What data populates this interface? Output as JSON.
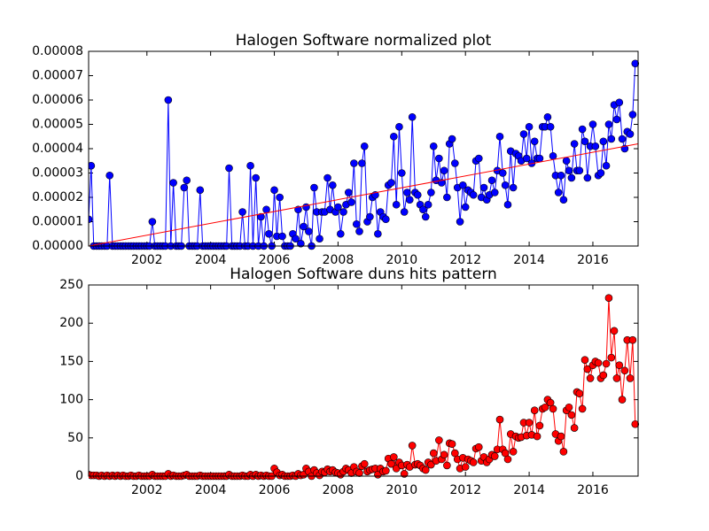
{
  "chart_data": [
    {
      "type": "line",
      "title": "Halogen Software normalized plot",
      "x": [
        2000.17,
        2000.25,
        2000.33,
        2000.42,
        2000.5,
        2000.58,
        2000.67,
        2000.75,
        2000.83,
        2000.92,
        2001,
        2001.08,
        2001.17,
        2001.25,
        2001.33,
        2001.42,
        2001.5,
        2001.58,
        2001.67,
        2001.75,
        2001.83,
        2001.92,
        2002,
        2002.08,
        2002.17,
        2002.25,
        2002.33,
        2002.42,
        2002.5,
        2002.58,
        2002.67,
        2002.75,
        2002.83,
        2002.92,
        2003,
        2003.08,
        2003.17,
        2003.25,
        2003.33,
        2003.42,
        2003.5,
        2003.58,
        2003.67,
        2003.75,
        2003.83,
        2003.92,
        2004,
        2004.08,
        2004.17,
        2004.25,
        2004.33,
        2004.42,
        2004.5,
        2004.58,
        2004.67,
        2004.75,
        2004.83,
        2004.92,
        2005,
        2005.08,
        2005.17,
        2005.25,
        2005.33,
        2005.42,
        2005.5,
        2005.58,
        2005.67,
        2005.75,
        2005.83,
        2005.92,
        2006,
        2006.08,
        2006.17,
        2006.25,
        2006.33,
        2006.42,
        2006.5,
        2006.58,
        2006.67,
        2006.75,
        2006.83,
        2006.92,
        2007,
        2007.08,
        2007.17,
        2007.25,
        2007.33,
        2007.42,
        2007.5,
        2007.58,
        2007.67,
        2007.75,
        2007.83,
        2007.92,
        2008,
        2008.08,
        2008.17,
        2008.25,
        2008.33,
        2008.42,
        2008.5,
        2008.58,
        2008.67,
        2008.75,
        2008.83,
        2008.92,
        2009,
        2009.08,
        2009.17,
        2009.25,
        2009.33,
        2009.42,
        2009.5,
        2009.58,
        2009.67,
        2009.75,
        2009.83,
        2009.92,
        2010,
        2010.08,
        2010.17,
        2010.25,
        2010.33,
        2010.42,
        2010.5,
        2010.58,
        2010.67,
        2010.75,
        2010.83,
        2010.92,
        2011,
        2011.08,
        2011.17,
        2011.25,
        2011.33,
        2011.42,
        2011.5,
        2011.58,
        2011.67,
        2011.75,
        2011.83,
        2011.92,
        2012,
        2012.08,
        2012.17,
        2012.25,
        2012.33,
        2012.42,
        2012.5,
        2012.58,
        2012.67,
        2012.75,
        2012.83,
        2012.92,
        2013,
        2013.08,
        2013.17,
        2013.25,
        2013.33,
        2013.42,
        2013.5,
        2013.58,
        2013.67,
        2013.75,
        2013.83,
        2013.92,
        2014,
        2014.08,
        2014.17,
        2014.25,
        2014.33,
        2014.42,
        2014.5,
        2014.58,
        2014.67,
        2014.75,
        2014.83,
        2014.92,
        2015,
        2015.08,
        2015.17,
        2015.25,
        2015.33,
        2015.42,
        2015.5,
        2015.58,
        2015.67,
        2015.75,
        2015.83,
        2015.92,
        2016,
        2016.08,
        2016.17,
        2016.25,
        2016.33,
        2016.42,
        2016.5,
        2016.58,
        2016.67,
        2016.75,
        2016.83,
        2016.92,
        2017,
        2017.08,
        2017.17,
        2017.25,
        2017.33
      ],
      "series": [
        {
          "color": "#0000ff",
          "values": [
            1.1e-05,
            3.3e-05,
            0,
            0,
            0,
            0,
            0,
            0,
            2.9e-05,
            0,
            0,
            0,
            0,
            0,
            0,
            0,
            0,
            0,
            0,
            0,
            0,
            0,
            0,
            0,
            1e-05,
            0,
            0,
            0,
            0,
            0,
            6e-05,
            0,
            2.6e-05,
            0,
            0,
            0,
            2.4e-05,
            2.7e-05,
            0,
            0,
            0,
            0,
            2.3e-05,
            0,
            0,
            0,
            0,
            0,
            0,
            0,
            0,
            0,
            0,
            3.2e-05,
            0,
            0,
            0,
            0,
            1.4e-05,
            0,
            0,
            3.3e-05,
            0,
            2.8e-05,
            0,
            1.2e-05,
            0,
            1.5e-05,
            5e-06,
            0,
            2.3e-05,
            4e-06,
            2e-05,
            4e-06,
            0,
            0,
            0,
            5e-06,
            3e-06,
            1.5e-05,
            1e-06,
            8e-06,
            1.6e-05,
            6e-06,
            0,
            2.4e-05,
            1.4e-05,
            3e-06,
            1.4e-05,
            1.4e-05,
            2.8e-05,
            1.5e-05,
            2.5e-05,
            1.4e-05,
            1.6e-05,
            5e-06,
            1.4e-05,
            1.7e-05,
            2.2e-05,
            1.8e-05,
            3.4e-05,
            9e-06,
            6e-06,
            3.4e-05,
            4.1e-05,
            1e-05,
            1.2e-05,
            2e-05,
            2.1e-05,
            5e-06,
            1.4e-05,
            1.2e-05,
            1.1e-05,
            2.5e-05,
            2.6e-05,
            4.5e-05,
            1.7e-05,
            4.9e-05,
            3e-05,
            1.4e-05,
            2.2e-05,
            1.9e-05,
            5.3e-05,
            2.2e-05,
            2.1e-05,
            1.7e-05,
            1.5e-05,
            1.2e-05,
            1.7e-05,
            2.2e-05,
            4.1e-05,
            2.7e-05,
            3.6e-05,
            2.6e-05,
            3.1e-05,
            2e-05,
            4.2e-05,
            4.4e-05,
            3.4e-05,
            2.4e-05,
            1e-05,
            2.5e-05,
            1.6e-05,
            2.3e-05,
            2.2e-05,
            2.1e-05,
            3.5e-05,
            3.6e-05,
            2e-05,
            2.4e-05,
            1.9e-05,
            2.1e-05,
            2.7e-05,
            2.2e-05,
            3.1e-05,
            4.5e-05,
            3e-05,
            2.5e-05,
            1.7e-05,
            3.9e-05,
            2.4e-05,
            3.8e-05,
            3.7e-05,
            3.5e-05,
            4.6e-05,
            3.6e-05,
            4.9e-05,
            3.4e-05,
            4.3e-05,
            3.6e-05,
            3.6e-05,
            4.9e-05,
            4.9e-05,
            5.3e-05,
            4.9e-05,
            3.7e-05,
            2.9e-05,
            2.2e-05,
            2.9e-05,
            1.9e-05,
            3.5e-05,
            3.1e-05,
            2.8e-05,
            4.2e-05,
            3.1e-05,
            3.1e-05,
            4.8e-05,
            4.3e-05,
            2.8e-05,
            4.1e-05,
            5e-05,
            4.1e-05,
            2.9e-05,
            3e-05,
            4.3e-05,
            3.3e-05,
            5e-05,
            4.4e-05,
            5.8e-05,
            5.2e-05,
            5.9e-05,
            4.4e-05,
            4e-05,
            4.7e-05,
            4.6e-05,
            5.4e-05,
            7.5e-05
          ]
        }
      ],
      "trend": {
        "color": "#ff0000",
        "x": [
          2000.17,
          2017.42
        ],
        "values": [
          0,
          4.2e-05
        ]
      },
      "xlim": [
        2000.17,
        2017.42
      ],
      "ylim": [
        0,
        8e-05
      ],
      "xticks": [
        2002,
        2004,
        2006,
        2008,
        2010,
        2012,
        2014,
        2016
      ],
      "yticks": [
        {
          "value": 0,
          "label": "0.00000"
        },
        {
          "value": 1e-05,
          "label": "0.00001"
        },
        {
          "value": 2e-05,
          "label": "0.00002"
        },
        {
          "value": 3e-05,
          "label": "0.00003"
        },
        {
          "value": 4e-05,
          "label": "0.00004"
        },
        {
          "value": 5e-05,
          "label": "0.00005"
        },
        {
          "value": 6e-05,
          "label": "0.00006"
        },
        {
          "value": 7e-05,
          "label": "0.00007"
        },
        {
          "value": 8e-05,
          "label": "0.00008"
        }
      ]
    },
    {
      "type": "line",
      "title": "Halogen Software duns hits pattern",
      "x": [
        2000.17,
        2000.25,
        2000.33,
        2000.42,
        2000.5,
        2000.58,
        2000.67,
        2000.75,
        2000.83,
        2000.92,
        2001,
        2001.08,
        2001.17,
        2001.25,
        2001.33,
        2001.42,
        2001.5,
        2001.58,
        2001.67,
        2001.75,
        2001.83,
        2001.92,
        2002,
        2002.08,
        2002.17,
        2002.25,
        2002.33,
        2002.42,
        2002.5,
        2002.58,
        2002.67,
        2002.75,
        2002.83,
        2002.92,
        2003,
        2003.08,
        2003.17,
        2003.25,
        2003.33,
        2003.42,
        2003.5,
        2003.58,
        2003.67,
        2003.75,
        2003.83,
        2003.92,
        2004,
        2004.08,
        2004.17,
        2004.25,
        2004.33,
        2004.42,
        2004.5,
        2004.58,
        2004.67,
        2004.75,
        2004.83,
        2004.92,
        2005,
        2005.08,
        2005.17,
        2005.25,
        2005.33,
        2005.42,
        2005.5,
        2005.58,
        2005.67,
        2005.75,
        2005.83,
        2005.92,
        2006,
        2006.08,
        2006.17,
        2006.25,
        2006.33,
        2006.42,
        2006.5,
        2006.58,
        2006.67,
        2006.75,
        2006.83,
        2006.92,
        2007,
        2007.08,
        2007.17,
        2007.25,
        2007.33,
        2007.42,
        2007.5,
        2007.58,
        2007.67,
        2007.75,
        2007.83,
        2007.92,
        2008,
        2008.08,
        2008.17,
        2008.25,
        2008.33,
        2008.42,
        2008.5,
        2008.58,
        2008.67,
        2008.75,
        2008.83,
        2008.92,
        2009,
        2009.08,
        2009.17,
        2009.25,
        2009.33,
        2009.42,
        2009.5,
        2009.58,
        2009.67,
        2009.75,
        2009.83,
        2009.92,
        2010,
        2010.08,
        2010.17,
        2010.25,
        2010.33,
        2010.42,
        2010.5,
        2010.58,
        2010.67,
        2010.75,
        2010.83,
        2010.92,
        2011,
        2011.08,
        2011.17,
        2011.25,
        2011.33,
        2011.42,
        2011.5,
        2011.58,
        2011.67,
        2011.75,
        2011.83,
        2011.92,
        2012,
        2012.08,
        2012.17,
        2012.25,
        2012.33,
        2012.42,
        2012.5,
        2012.58,
        2012.67,
        2012.75,
        2012.83,
        2012.92,
        2013,
        2013.08,
        2013.17,
        2013.25,
        2013.33,
        2013.42,
        2013.5,
        2013.58,
        2013.67,
        2013.75,
        2013.83,
        2013.92,
        2014,
        2014.08,
        2014.17,
        2014.25,
        2014.33,
        2014.42,
        2014.5,
        2014.58,
        2014.67,
        2014.75,
        2014.83,
        2014.92,
        2015,
        2015.08,
        2015.17,
        2015.25,
        2015.33,
        2015.42,
        2015.5,
        2015.58,
        2015.67,
        2015.75,
        2015.83,
        2015.92,
        2016,
        2016.08,
        2016.17,
        2016.25,
        2016.33,
        2016.42,
        2016.5,
        2016.58,
        2016.67,
        2016.75,
        2016.83,
        2016.92,
        2017,
        2017.08,
        2017.17,
        2017.25,
        2017.33
      ],
      "series": [
        {
          "color": "#ff0000",
          "values": [
            2,
            1,
            1,
            1,
            0,
            1,
            0,
            1,
            0,
            1,
            0,
            1,
            0,
            1,
            0,
            0,
            1,
            0,
            0,
            1,
            0,
            0,
            0,
            0,
            2,
            0,
            0,
            0,
            0,
            0,
            3,
            0,
            1,
            0,
            0,
            0,
            1,
            2,
            0,
            0,
            0,
            0,
            1,
            0,
            0,
            0,
            0,
            0,
            0,
            0,
            0,
            0,
            0,
            2,
            0,
            0,
            0,
            0,
            1,
            0,
            0,
            2,
            0,
            2,
            0,
            1,
            0,
            1,
            0,
            0,
            10,
            5,
            1,
            2,
            0,
            0,
            0,
            1,
            0,
            3,
            1,
            2,
            10,
            6,
            0,
            8,
            4,
            1,
            6,
            5,
            9,
            6,
            8,
            5,
            4,
            2,
            6,
            10,
            8,
            4,
            12,
            6,
            4,
            13,
            16,
            6,
            8,
            9,
            10,
            2,
            10,
            6,
            7,
            23,
            16,
            25,
            10,
            18,
            14,
            3,
            15,
            12,
            40,
            15,
            16,
            14,
            10,
            8,
            18,
            15,
            30,
            20,
            47,
            22,
            28,
            14,
            43,
            42,
            30,
            22,
            10,
            24,
            12,
            22,
            20,
            18,
            36,
            38,
            20,
            25,
            18,
            22,
            28,
            26,
            35,
            74,
            35,
            30,
            22,
            55,
            32,
            52,
            50,
            51,
            70,
            53,
            70,
            54,
            86,
            52,
            66,
            88,
            90,
            100,
            96,
            88,
            55,
            46,
            52,
            32,
            86,
            90,
            80,
            63,
            110,
            108,
            88,
            152,
            140,
            128,
            145,
            150,
            148,
            128,
            132,
            147,
            233,
            155,
            190,
            128,
            145,
            100,
            138,
            178,
            128,
            178,
            68
          ]
        }
      ],
      "xlim": [
        2000.17,
        2017.42
      ],
      "ylim": [
        0,
        250
      ],
      "xticks": [
        2002,
        2004,
        2006,
        2008,
        2010,
        2012,
        2014,
        2016
      ],
      "yticks": [
        0,
        50,
        100,
        150,
        200,
        250
      ]
    }
  ]
}
